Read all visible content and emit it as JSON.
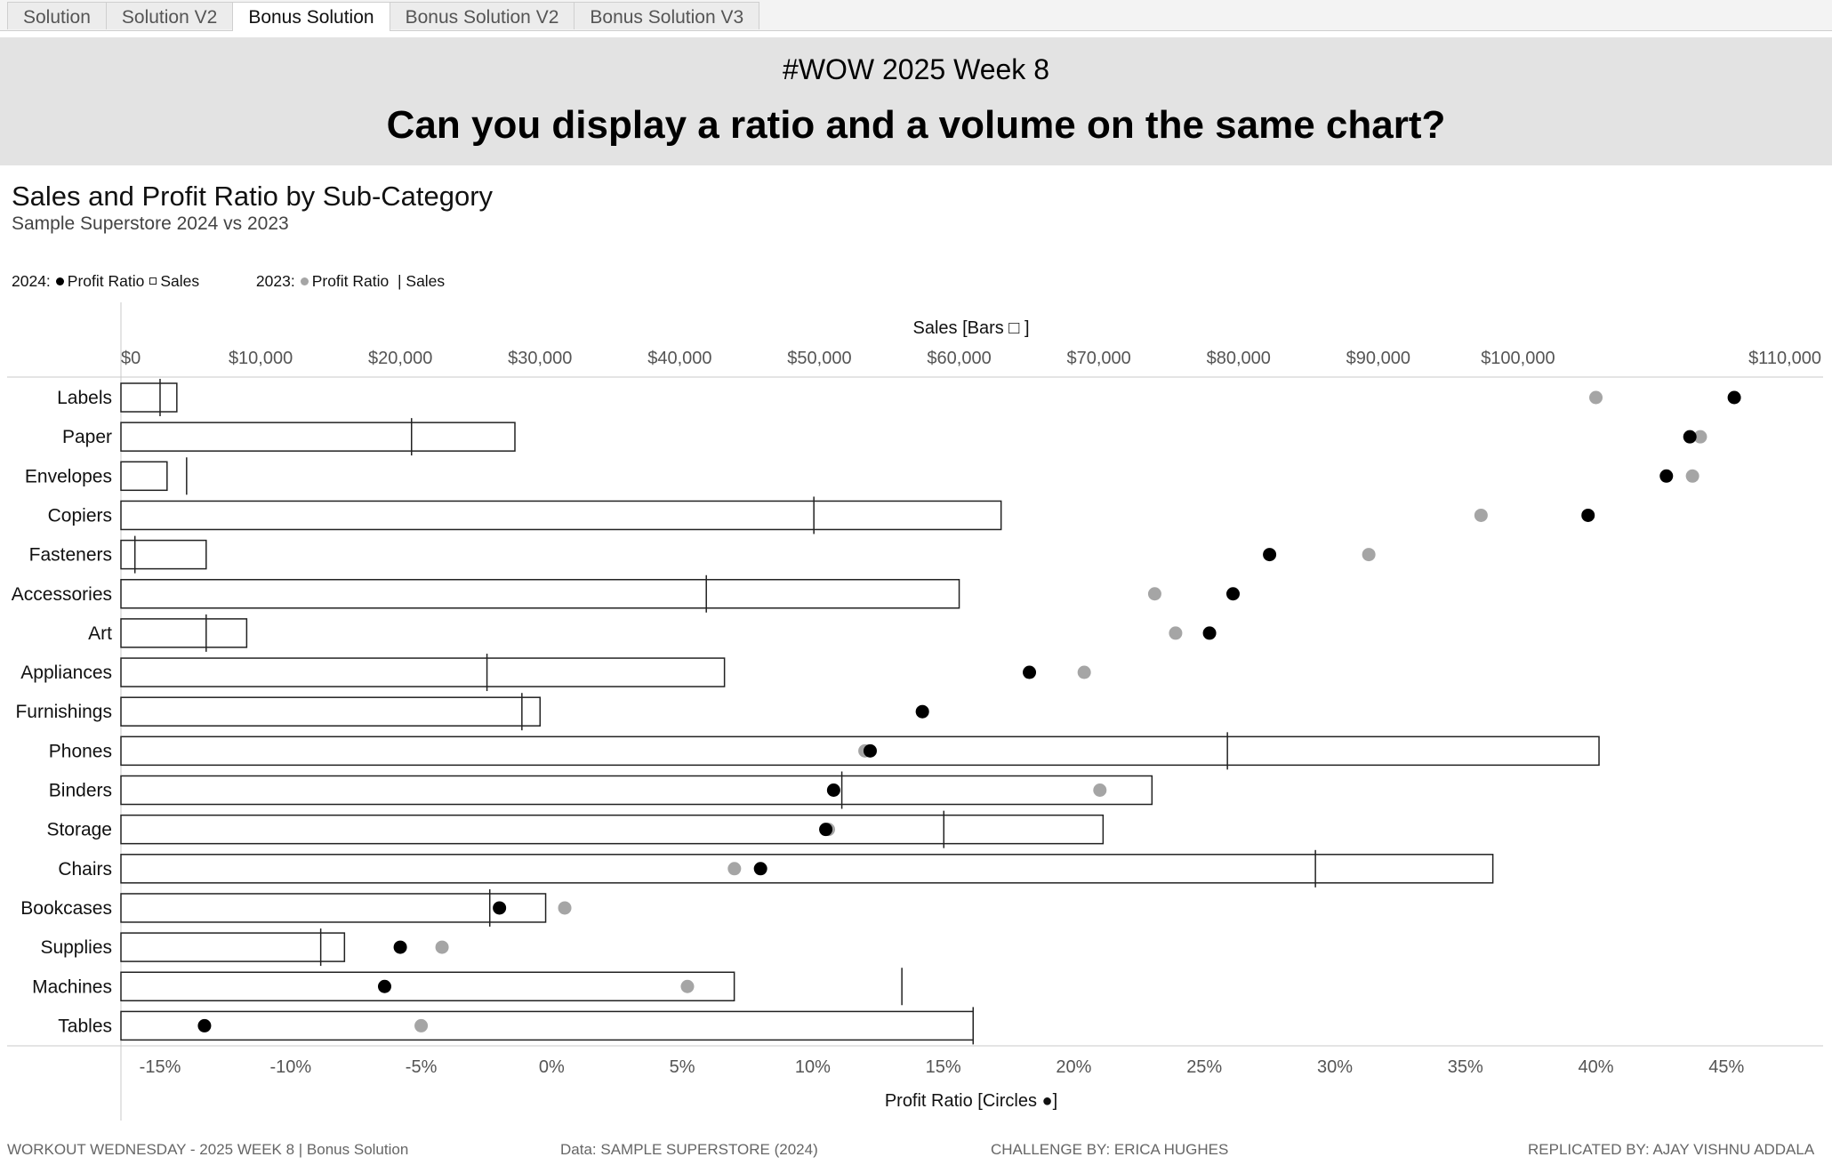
{
  "tabs": [
    "Solution",
    "Solution V2",
    "Bonus Solution",
    "Bonus Solution V2",
    "Bonus Solution V3"
  ],
  "active_tab": 2,
  "banner": {
    "subtitle": "#WOW 2025 Week 8",
    "title": "Can you display a ratio and a volume on the same chart?"
  },
  "legend": {
    "y2024": "2024:",
    "profit_ratio": "Profit Ratio",
    "sales_box": "Sales",
    "y2023": "2023:",
    "profit_ratio_2023": "Profit Ratio",
    "sales_2023": "| Sales"
  },
  "colors": {
    "y2024": "#000000",
    "y2023": "#a5a5a5",
    "bar_stroke": "#222222"
  },
  "chart_data": {
    "type": "bar",
    "title": "Sales and Profit Ratio by Sub-Category",
    "subtitle": "Sample Superstore 2024 vs 2023",
    "top_axis": {
      "label": "Sales [Bars □ ]",
      "range": [
        0,
        110000
      ],
      "ticks": [
        0,
        10000,
        20000,
        30000,
        40000,
        50000,
        60000,
        70000,
        80000,
        90000,
        100000,
        110000
      ],
      "tick_labels": [
        "$0",
        "$10,000",
        "$20,000",
        "$30,000",
        "$40,000",
        "$50,000",
        "$60,000",
        "$70,000",
        "$80,000",
        "$90,000",
        "$100,000",
        "$110,000"
      ]
    },
    "bottom_axis": {
      "label": "Profit Ratio [Circles ●]",
      "range": [
        -0.165,
        0.47
      ],
      "ticks": [
        -0.15,
        -0.1,
        -0.05,
        0,
        0.05,
        0.1,
        0.15,
        0.2,
        0.25,
        0.3,
        0.35,
        0.4,
        0.45
      ],
      "tick_labels": [
        "-15%",
        "-10%",
        "-5%",
        "0%",
        "5%",
        "10%",
        "15%",
        "20%",
        "25%",
        "30%",
        "35%",
        "40%",
        "45%"
      ]
    },
    "categories": [
      "Labels",
      "Paper",
      "Envelopes",
      "Copiers",
      "Fasteners",
      "Accessories",
      "Art",
      "Appliances",
      "Furnishings",
      "Phones",
      "Binders",
      "Storage",
      "Chairs",
      "Bookcases",
      "Supplies",
      "Machines",
      "Tables"
    ],
    "series": [
      {
        "name": "Sales",
        "year": 2024,
        "mark": "bar",
        "values": [
          4000,
          28200,
          3300,
          63000,
          6100,
          60000,
          9000,
          43200,
          30000,
          105800,
          73800,
          70300,
          98200,
          30400,
          16000,
          43900,
          61000
        ]
      },
      {
        "name": "Sales",
        "year": 2023,
        "mark": "tick",
        "values": [
          2800,
          20800,
          4700,
          49600,
          1000,
          41900,
          6100,
          26200,
          28700,
          79200,
          51600,
          58900,
          85500,
          26400,
          14300,
          55900,
          61000
        ]
      },
      {
        "name": "Profit Ratio",
        "year": 2024,
        "mark": "circle",
        "values": [
          0.453,
          0.436,
          0.427,
          0.397,
          0.275,
          0.261,
          0.252,
          0.183,
          0.142,
          0.122,
          0.108,
          0.105,
          0.08,
          -0.02,
          -0.058,
          -0.064,
          -0.133
        ]
      },
      {
        "name": "Profit Ratio",
        "year": 2023,
        "mark": "circle",
        "values": [
          0.4,
          0.44,
          0.437,
          0.356,
          0.313,
          0.231,
          0.239,
          0.204,
          0.142,
          0.12,
          0.21,
          0.106,
          0.07,
          0.005,
          -0.042,
          0.052,
          -0.05
        ]
      }
    ],
    "grid": false,
    "legend_position": "top-left"
  },
  "footer": {
    "left": "WORKOUT WEDNESDAY - 2025 WEEK 8 | Bonus Solution",
    "data": "Data: SAMPLE SUPERSTORE (2024)",
    "challenge": "CHALLENGE BY: ERICA HUGHES",
    "replicated": "REPLICATED BY: AJAY VISHNU ADDALA"
  }
}
